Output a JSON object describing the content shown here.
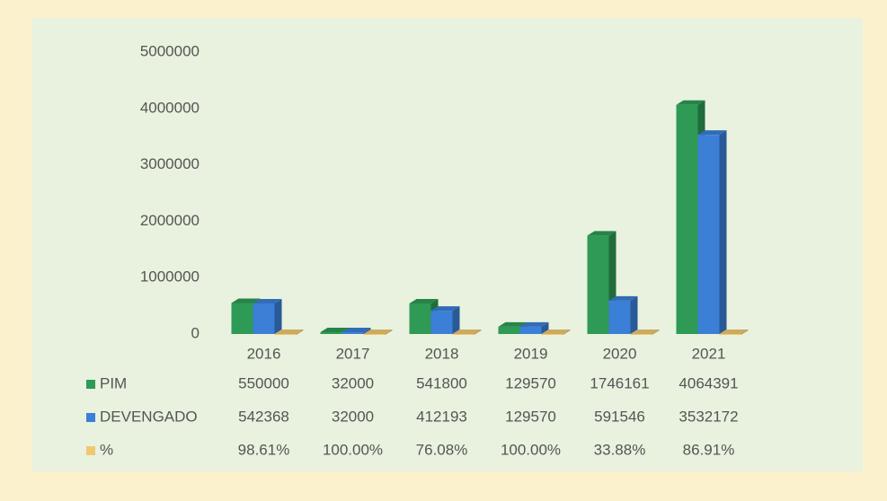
{
  "chart_data": {
    "type": "bar",
    "categories": [
      "2016",
      "2017",
      "2018",
      "2019",
      "2020",
      "2021"
    ],
    "series": [
      {
        "name": "PIM",
        "color": "#2e9a55",
        "values": [
          550000,
          32000,
          541800,
          129570,
          1746161,
          4064391
        ]
      },
      {
        "name": "DEVENGADO",
        "color": "#3b7fd6",
        "values": [
          542368,
          32000,
          412193,
          129570,
          591546,
          3532172
        ]
      },
      {
        "name": "%",
        "color": "#f0c870",
        "values": [
          98.61,
          100.0,
          76.08,
          100.0,
          33.88,
          86.91
        ],
        "value_labels": [
          "98.61%",
          "100.00%",
          "76.08%",
          "100.00%",
          "33.88%",
          "86.91%"
        ]
      }
    ],
    "ylim": [
      0,
      5000000
    ],
    "yticks": [
      0,
      1000000,
      2000000,
      3000000,
      4000000,
      5000000
    ],
    "grid": false,
    "data_table": true
  }
}
